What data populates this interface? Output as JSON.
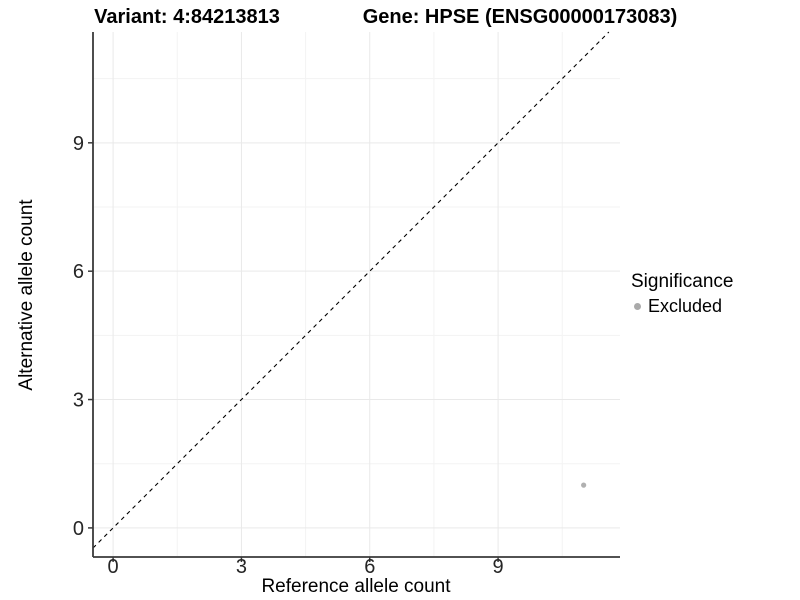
{
  "chart_data": {
    "type": "scatter",
    "titles": {
      "variant": "Variant: 4:84213813",
      "gene": "Gene: HPSE (ENSG00000173083)"
    },
    "xlabel": "Reference allele count",
    "ylabel": "Alternative allele count",
    "xticks": [
      "0",
      "3",
      "6",
      "9"
    ],
    "xtick_values": [
      0,
      3,
      6,
      9
    ],
    "yticks": [
      "0",
      "3",
      "6",
      "9"
    ],
    "ytick_values": [
      0,
      3,
      6,
      9
    ],
    "minor_ticks_x": [
      1.5,
      4.5,
      7.5,
      10.5
    ],
    "minor_ticks_y": [
      1.5,
      4.5,
      7.5,
      10.5
    ],
    "xlim": [
      -0.47,
      11.85
    ],
    "ylim": [
      -0.68,
      11.59
    ],
    "grid": "on",
    "identity_line": {
      "type": "y=x",
      "style": "dashed",
      "color": "#000000"
    },
    "points": [
      {
        "x": 11,
        "y": 1,
        "series": "Excluded"
      }
    ],
    "legend": {
      "position": "right",
      "title": "Significance",
      "items": [
        {
          "label": "Excluded",
          "color": "#aaaaaa"
        }
      ]
    },
    "colors": {
      "background": "#ffffff",
      "grid_major": "#e9e9e9",
      "grid_minor": "#f3f3f3",
      "axis_line": "#3a3a3a",
      "point": "#b0b0b0",
      "tick_text": "#262626"
    }
  }
}
